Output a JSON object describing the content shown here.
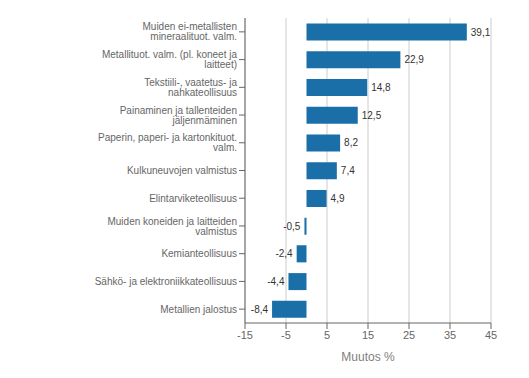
{
  "chart_data": {
    "type": "bar",
    "orientation": "horizontal",
    "categories": [
      "Metallien jalostus",
      "Sähkö- ja elektroniikkateollisuus",
      "Kemianteollisuus",
      "Muiden koneiden ja laitteiden valmistus",
      "Elintarviketeollisuus",
      "Kulkuneuvojen valmistus",
      "Paperin, paperi- ja kartonkituot. valm.",
      "Painaminen ja tallenteiden jäljenmäminen",
      "Tekstiili-, vaatetus- ja nahkateollisuus",
      "Metallituot. valm. (pl. koneet ja laitteet)",
      "Muiden ei-metallisten mineraalituot. valm."
    ],
    "values": [
      -8.4,
      -4.4,
      -2.4,
      -0.5,
      4.9,
      7.4,
      8.2,
      12.5,
      14.8,
      22.9,
      39.1
    ],
    "value_labels": [
      "-8,4",
      "-4,4",
      "-2,4",
      "-0,5",
      "4,9",
      "7,4",
      "8,2",
      "12,5",
      "14,8",
      "22,9",
      "39,1"
    ],
    "data_labels": true,
    "color": "#1a6fa8",
    "xlabel": "Muutos %",
    "xlim": [
      -15,
      45
    ],
    "xticks": [
      -15,
      -5,
      5,
      15,
      25,
      35,
      45
    ],
    "grid": true
  }
}
